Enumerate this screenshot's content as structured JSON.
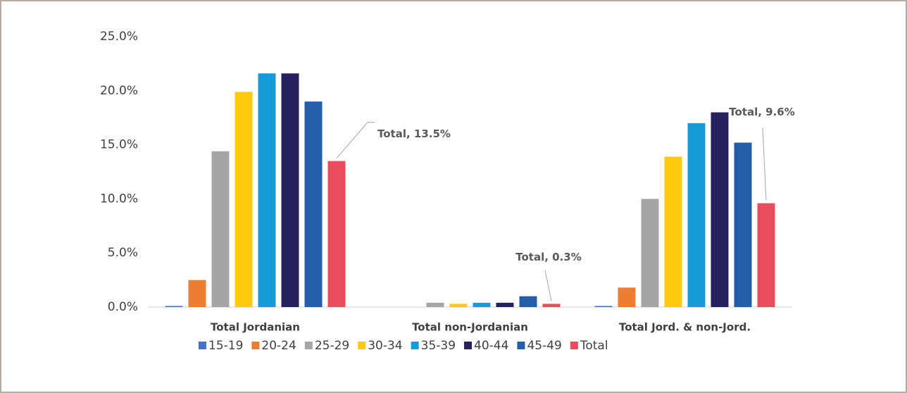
{
  "chart_data": {
    "type": "bar",
    "categories": [
      "Total Jordanian",
      "Total non-Jordanian",
      "Total Jord. & non-Jord."
    ],
    "series": [
      {
        "name": "15-19",
        "color": "#4472c4",
        "values": [
          0.1,
          0,
          0.1
        ]
      },
      {
        "name": "20-24",
        "color": "#ed7d31",
        "values": [
          2.5,
          0,
          1.8
        ]
      },
      {
        "name": "25-29",
        "color": "#a5a5a5",
        "values": [
          14.4,
          0.4,
          10.0
        ]
      },
      {
        "name": "30-34",
        "color": "#ffc90e",
        "values": [
          19.9,
          0.3,
          13.9
        ]
      },
      {
        "name": "35-39",
        "color": "#179bd7",
        "values": [
          21.6,
          0.4,
          17.0
        ]
      },
      {
        "name": "40-44",
        "color": "#25215e",
        "values": [
          21.6,
          0.4,
          18.0
        ]
      },
      {
        "name": "45-49",
        "color": "#255ea8",
        "values": [
          19.0,
          1.0,
          15.2
        ]
      },
      {
        "name": "Total",
        "color": "#e84d5b",
        "values": [
          13.5,
          0.3,
          9.6
        ],
        "value_labels": [
          "Total, 13.5%",
          "Total, 0.3%",
          "Total, 9.6%"
        ]
      }
    ],
    "ylim": [
      0,
      25
    ],
    "yticks": [
      {
        "value": 0,
        "label": "0.0%"
      },
      {
        "value": 5,
        "label": "5.0%"
      },
      {
        "value": 10,
        "label": "10.0%"
      },
      {
        "value": 15,
        "label": "15.0%"
      },
      {
        "value": 20,
        "label": "20.0%"
      },
      {
        "value": 25,
        "label": "25.0%"
      }
    ],
    "legend": "bottom"
  }
}
